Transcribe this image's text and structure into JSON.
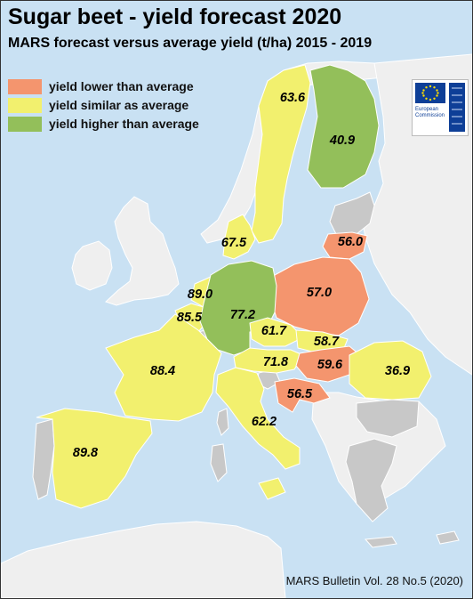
{
  "title": "Sugar beet - yield forecast 2020",
  "subtitle": "MARS forecast versus average yield (t/ha) 2015 - 2019",
  "legend": [
    {
      "label": "yield lower than average",
      "color": "#f4956e"
    },
    {
      "label": "yield similar as average",
      "color": "#f2f06e"
    },
    {
      "label": "yield higher than average",
      "color": "#93bf5a"
    }
  ],
  "credit": "MARS Bulletin Vol. 28 No.5 (2020)",
  "logo": {
    "line1": "European",
    "line2": "Commission"
  },
  "colors": {
    "sea": "#c9e1f3",
    "no_data": "#c8c8c8",
    "background_land": "#efefef",
    "border": "#ffffff"
  },
  "map": {
    "chart_data": {
      "type": "choropleth",
      "regions": [
        {
          "region": "Sweden",
          "value": 63.6,
          "category": "similar"
        },
        {
          "region": "Finland",
          "value": 40.9,
          "category": "higher"
        },
        {
          "region": "Lithuania",
          "value": 56.0,
          "category": "lower"
        },
        {
          "region": "Denmark",
          "value": 67.5,
          "category": "similar"
        },
        {
          "region": "Poland",
          "value": 57.0,
          "category": "lower"
        },
        {
          "region": "Netherlands",
          "value": 89.0,
          "category": "similar"
        },
        {
          "region": "Belgium",
          "value": 85.5,
          "category": "similar"
        },
        {
          "region": "Germany",
          "value": 77.2,
          "category": "higher"
        },
        {
          "region": "Czechia",
          "value": 61.7,
          "category": "similar"
        },
        {
          "region": "Slovakia",
          "value": 58.7,
          "category": "similar"
        },
        {
          "region": "France",
          "value": 88.4,
          "category": "similar"
        },
        {
          "region": "Austria",
          "value": 71.8,
          "category": "similar"
        },
        {
          "region": "Hungary",
          "value": 59.6,
          "category": "lower"
        },
        {
          "region": "Romania",
          "value": 36.9,
          "category": "similar"
        },
        {
          "region": "Croatia",
          "value": 56.5,
          "category": "lower"
        },
        {
          "region": "Italy",
          "value": 62.2,
          "category": "similar"
        },
        {
          "region": "Spain",
          "value": 89.8,
          "category": "similar"
        }
      ]
    }
  }
}
